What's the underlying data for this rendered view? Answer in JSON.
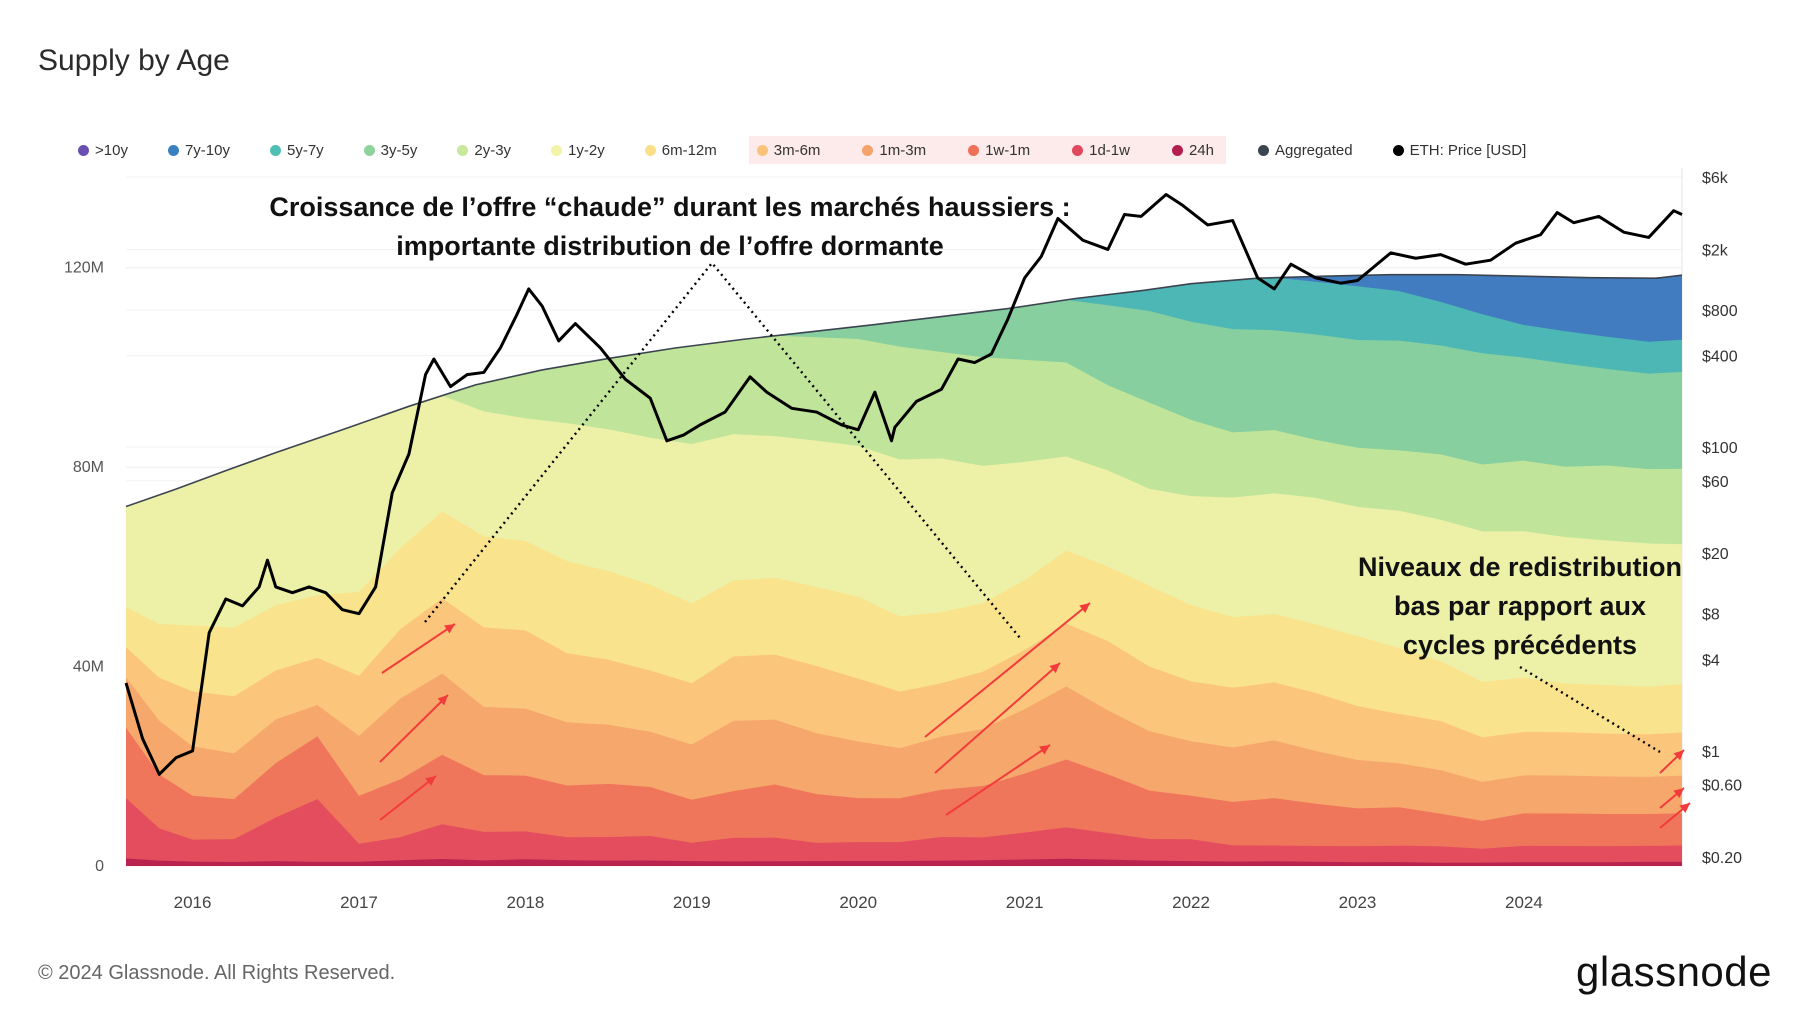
{
  "title": "Supply by Age",
  "legend": [
    {
      "label": ">10y",
      "color": "#6a4fb0"
    },
    {
      "label": "7y-10y",
      "color": "#3a7fc0"
    },
    {
      "label": "5y-7y",
      "color": "#4fbfb4"
    },
    {
      "label": "3y-5y",
      "color": "#8fd39c"
    },
    {
      "label": "2y-3y",
      "color": "#c8e89a"
    },
    {
      "label": "1y-2y",
      "color": "#f2f2a8"
    },
    {
      "label": "6m-12m",
      "color": "#fbe089"
    },
    {
      "label": "3m-6m",
      "color": "#fbc27a"
    },
    {
      "label": "1m-3m",
      "color": "#f5a36a"
    },
    {
      "label": "1w-1m",
      "color": "#ef7059"
    },
    {
      "label": "1d-1w",
      "color": "#e0485e"
    },
    {
      "label": "24h",
      "color": "#b41e4f"
    },
    {
      "label": "Aggregated",
      "color": "#3b4450"
    },
    {
      "label": "ETH: Price [USD]",
      "color": "#000000"
    }
  ],
  "annotations": {
    "top_line1": "Croissance de l’offre “chaude” durant les marchés haussiers :",
    "top_line2": "importante distribution de l’offre dormante",
    "right_line1": "Niveaux de redistribution",
    "right_line2": "bas par rapport aux",
    "right_line3": "cycles précédents"
  },
  "footer": "© 2024 Glassnode. All Rights Reserved.",
  "brand": "glassnode",
  "chart_data": {
    "type": "area",
    "title": "Supply by Age",
    "xlabel": "",
    "ylabel": "",
    "xlim": [
      2015.6,
      2024.95
    ],
    "ylim": [
      0,
      140
    ],
    "y_unit": "M",
    "left_ticks": [
      {
        "value": 0,
        "label": "0"
      },
      {
        "value": 40,
        "label": "40M"
      },
      {
        "value": 80,
        "label": "80M"
      },
      {
        "value": 120,
        "label": "120M"
      }
    ],
    "right_ticks": [
      {
        "value": 0.2,
        "label": "$0.20"
      },
      {
        "value": 0.6,
        "label": "$0.60"
      },
      {
        "value": 1,
        "label": "$1"
      },
      {
        "value": 4,
        "label": "$4"
      },
      {
        "value": 8,
        "label": "$8"
      },
      {
        "value": 20,
        "label": "$20"
      },
      {
        "value": 60,
        "label": "$60"
      },
      {
        "value": 100,
        "label": "$100"
      },
      {
        "value": 400,
        "label": "$400"
      },
      {
        "value": 800,
        "label": "$800"
      },
      {
        "value": 2000,
        "label": "$2k"
      },
      {
        "value": 6000,
        "label": "$6k"
      }
    ],
    "price_scale": "log",
    "x_ticks": [
      {
        "value": 2016,
        "label": "2016"
      },
      {
        "value": 2017,
        "label": "2017"
      },
      {
        "value": 2018,
        "label": "2018"
      },
      {
        "value": 2019,
        "label": "2019"
      },
      {
        "value": 2020,
        "label": "2020"
      },
      {
        "value": 2021,
        "label": "2021"
      },
      {
        "value": 2022,
        "label": "2022"
      },
      {
        "value": 2023,
        "label": "2023"
      },
      {
        "value": 2024,
        "label": "2024"
      }
    ],
    "x": [
      2015.6,
      2015.8,
      2016.0,
      2016.25,
      2016.5,
      2016.75,
      2017.0,
      2017.25,
      2017.5,
      2017.75,
      2018.0,
      2018.25,
      2018.5,
      2018.75,
      2019.0,
      2019.25,
      2019.5,
      2019.75,
      2020.0,
      2020.25,
      2020.5,
      2020.75,
      2021.0,
      2021.25,
      2021.5,
      2021.75,
      2022.0,
      2022.25,
      2022.5,
      2022.75,
      2023.0,
      2023.25,
      2023.5,
      2023.75,
      2024.0,
      2024.25,
      2024.5,
      2024.75,
      2024.95
    ],
    "series": [
      {
        "name": "24h",
        "values": [
          1.5,
          1,
          0.8,
          0.7,
          0.9,
          0.8,
          0.7,
          1,
          1.2,
          1,
          1.2,
          1,
          0.9,
          0.9,
          0.8,
          0.8,
          0.8,
          0.8,
          0.8,
          0.8,
          0.9,
          1,
          1.2,
          1.4,
          1.2,
          1,
          0.9,
          0.8,
          0.9,
          0.8,
          0.7,
          0.7,
          0.6,
          0.6,
          0.7,
          0.7,
          0.7,
          0.8,
          0.8
        ]
      },
      {
        "name": "1d-1w",
        "values": [
          12,
          6,
          4,
          4,
          8,
          12,
          3,
          4,
          6,
          5,
          5,
          4,
          4,
          4,
          3,
          4,
          4,
          3,
          3,
          3,
          4,
          4,
          5,
          6,
          5,
          4,
          4,
          3,
          3,
          3,
          3,
          3,
          3,
          2.5,
          3,
          3,
          3,
          3,
          3
        ]
      },
      {
        "name": "1w-1m",
        "values": [
          14,
          10,
          8,
          7,
          10,
          12,
          8,
          10,
          12,
          10,
          10,
          9,
          9,
          8,
          7,
          8,
          9,
          8,
          7,
          7,
          8,
          9,
          11,
          13,
          11,
          9,
          8,
          8,
          9,
          8,
          7,
          7,
          6,
          5,
          6,
          6,
          6,
          6,
          6
        ]
      },
      {
        "name": "1m-3m",
        "values": [
          10,
          10,
          9,
          8,
          8,
          6,
          10,
          14,
          14,
          12,
          12,
          11,
          10,
          9,
          9,
          12,
          11,
          10,
          9,
          8,
          9,
          10,
          12,
          14,
          12,
          11,
          10,
          10,
          11,
          10,
          9,
          8,
          8,
          7,
          7,
          7,
          7,
          7,
          7
        ]
      },
      {
        "name": "3m-6m",
        "values": [
          6,
          8,
          10,
          10,
          9,
          9,
          10,
          12,
          13,
          14,
          14,
          12,
          11,
          10,
          10,
          11,
          11,
          11,
          10,
          9,
          9,
          10,
          11,
          12,
          13,
          12,
          11,
          11,
          11,
          11,
          10,
          9,
          9,
          8,
          8,
          8,
          8,
          8,
          8
        ]
      },
      {
        "name": "6m-12m",
        "values": [
          8,
          10,
          12,
          12,
          12,
          12,
          14,
          14,
          15,
          16,
          16,
          16,
          15,
          14,
          13,
          13,
          13,
          13,
          13,
          12,
          12,
          12,
          13,
          14,
          14,
          15,
          14,
          13,
          13,
          13,
          13,
          12,
          11,
          10,
          10,
          9,
          9,
          9,
          9
        ]
      },
      {
        "name": "1y-2y",
        "values": [
          20,
          24,
          26,
          28,
          28,
          30,
          28,
          24,
          20,
          22,
          22,
          24,
          24,
          24,
          26,
          25,
          24,
          24,
          24,
          25,
          26,
          24,
          22,
          18,
          18,
          18,
          20,
          22,
          23,
          24,
          24,
          25,
          26,
          27,
          27,
          27,
          27,
          27,
          26
        ]
      },
      {
        "name": "2y-3y",
        "values": [
          0,
          0,
          0,
          0,
          0,
          0,
          0,
          0,
          0,
          5,
          8,
          10,
          12,
          14,
          16,
          16,
          17,
          17,
          17,
          18,
          18,
          19,
          19,
          18,
          16,
          16,
          14,
          12,
          12,
          11,
          11,
          11,
          12,
          12,
          13,
          13,
          14,
          14,
          14
        ]
      },
      {
        "name": "3y-5y",
        "values": [
          0,
          0,
          0,
          0,
          0,
          0,
          0,
          0,
          0,
          0,
          0,
          0,
          0,
          0,
          0,
          0,
          0,
          1,
          2,
          4,
          6,
          8,
          10,
          12,
          15,
          17,
          18,
          19,
          19,
          20,
          20,
          20,
          20,
          20,
          19,
          19,
          18,
          18,
          18
        ]
      },
      {
        "name": "5y-7y",
        "values": [
          0,
          0,
          0,
          0,
          0,
          0,
          0,
          0,
          0,
          0,
          0,
          0,
          0,
          0,
          0,
          0,
          0,
          0,
          0,
          0,
          0,
          0,
          0,
          0,
          2,
          4,
          7,
          9,
          10,
          10,
          10,
          9,
          8,
          7,
          6,
          6,
          6,
          6,
          6
        ]
      },
      {
        "name": "7y-10y",
        "values": [
          0,
          0,
          0,
          0,
          0,
          0,
          0,
          0,
          0,
          0,
          0,
          0,
          0,
          0,
          0,
          0,
          0,
          0,
          0,
          0,
          0,
          0,
          0,
          0,
          0,
          0,
          0,
          0,
          0,
          1,
          2,
          3,
          5,
          7,
          9,
          10,
          11,
          12,
          12
        ]
      },
      {
        "name": ">10y",
        "values": [
          0,
          0,
          0,
          0,
          0,
          0,
          0,
          0,
          0,
          0,
          0,
          0,
          0,
          0,
          0,
          0,
          0,
          0,
          0,
          0,
          0,
          0,
          0,
          0,
          0,
          0,
          0,
          0,
          0,
          0,
          0,
          0,
          0,
          0,
          0,
          0,
          0,
          0,
          0
        ]
      }
    ],
    "aggregated": {
      "name": "Aggregated",
      "x": [
        2015.6,
        2015.9,
        2016.2,
        2016.5,
        2016.9,
        2017.3,
        2017.7,
        2018.1,
        2018.5,
        2018.9,
        2019.3,
        2019.7,
        2020.1,
        2020.5,
        2020.9,
        2021.3,
        2021.7,
        2022.0,
        2022.4,
        2022.8,
        2023.2,
        2023.6,
        2024.0,
        2024.4,
        2024.8,
        2024.95
      ],
      "values": [
        72.1,
        75.6,
        79.3,
        82.9,
        87.5,
        92.2,
        96.5,
        99.5,
        101.8,
        103.9,
        105.6,
        107.1,
        108.6,
        110.2,
        111.8,
        113.8,
        115.4,
        116.8,
        117.9,
        118.3,
        118.6,
        118.6,
        118.3,
        118.0,
        117.9,
        118.5
      ]
    },
    "price": {
      "name": "ETH: Price [USD]",
      "x": [
        2015.6,
        2015.7,
        2015.8,
        2015.9,
        2016.0,
        2016.1,
        2016.2,
        2016.3,
        2016.4,
        2016.45,
        2016.5,
        2016.6,
        2016.7,
        2016.8,
        2016.9,
        2017.0,
        2017.1,
        2017.2,
        2017.3,
        2017.4,
        2017.45,
        2017.55,
        2017.65,
        2017.75,
        2017.85,
        2017.95,
        2018.02,
        2018.1,
        2018.2,
        2018.3,
        2018.45,
        2018.6,
        2018.75,
        2018.85,
        2018.95,
        2019.05,
        2019.2,
        2019.35,
        2019.45,
        2019.6,
        2019.75,
        2019.9,
        2020.0,
        2020.1,
        2020.2,
        2020.22,
        2020.35,
        2020.5,
        2020.6,
        2020.7,
        2020.8,
        2020.9,
        2021.0,
        2021.1,
        2021.2,
        2021.35,
        2021.5,
        2021.6,
        2021.7,
        2021.85,
        2021.95,
        2022.1,
        2022.25,
        2022.4,
        2022.5,
        2022.6,
        2022.75,
        2022.9,
        2023.0,
        2023.2,
        2023.35,
        2023.5,
        2023.65,
        2023.8,
        2023.95,
        2024.1,
        2024.2,
        2024.3,
        2024.45,
        2024.6,
        2024.75,
        2024.9,
        2024.95
      ],
      "values": [
        2.8,
        1.2,
        0.7,
        0.9,
        1.0,
        6.0,
        10,
        9,
        12,
        18,
        12,
        11,
        12,
        11,
        8.5,
        8.0,
        12,
        50,
        90,
        300,
        380,
        250,
        300,
        310,
        450,
        750,
        1100,
        850,
        500,
        650,
        450,
        280,
        210,
        110,
        120,
        140,
        170,
        290,
        230,
        180,
        170,
        140,
        130,
        230,
        110,
        135,
        200,
        240,
        380,
        360,
        410,
        700,
        1300,
        1800,
        3200,
        2300,
        2000,
        3400,
        3300,
        4600,
        3900,
        2900,
        3100,
        1300,
        1100,
        1600,
        1300,
        1200,
        1250,
        1900,
        1750,
        1850,
        1600,
        1700,
        2200,
        2500,
        3500,
        3000,
        3300,
        2600,
        2400,
        3600,
        3400
      ]
    }
  }
}
